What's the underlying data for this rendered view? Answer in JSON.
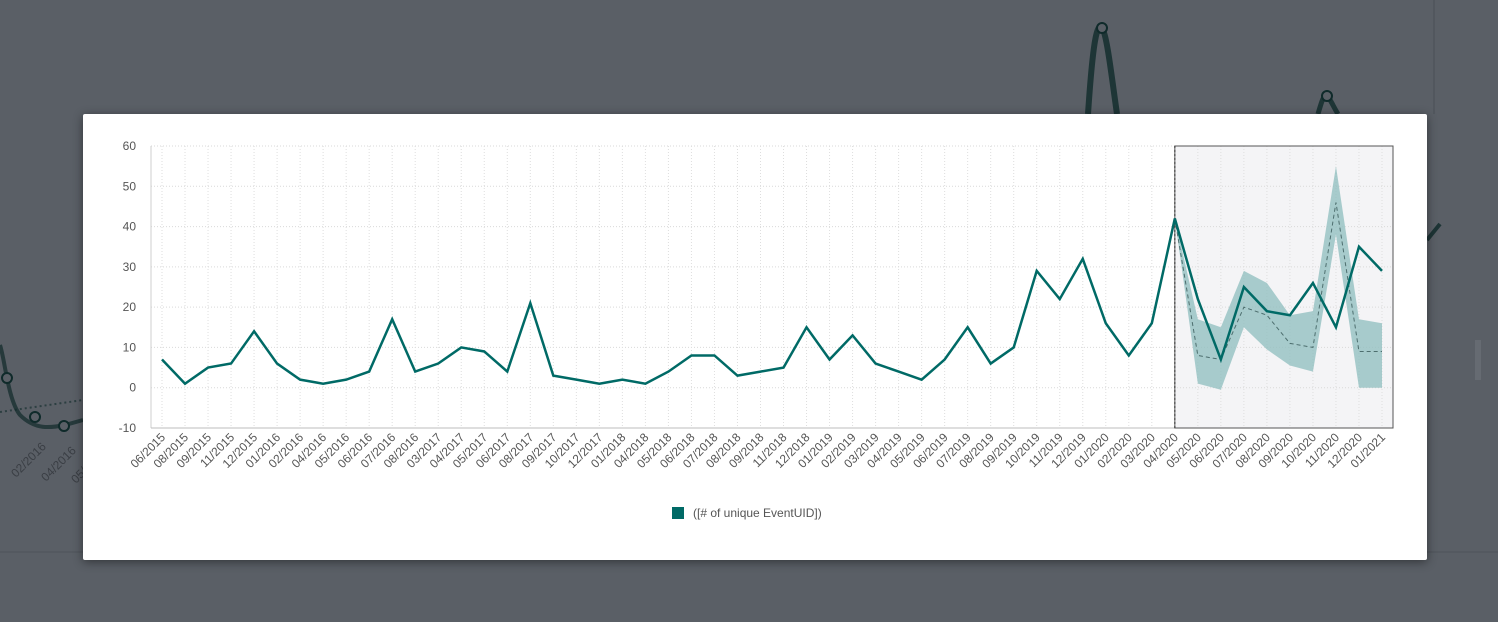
{
  "colors": {
    "series": "#006a66",
    "band": "#8dbdbd",
    "forecast_region": "#f4f4f6",
    "backdrop": "#5a5f66"
  },
  "backdrop": {
    "visible_tick_labels": [
      "02/2016",
      "04/2016",
      "05/2016"
    ]
  },
  "chart_data": {
    "type": "line",
    "x": [
      "06/2015",
      "08/2015",
      "09/2015",
      "11/2015",
      "12/2015",
      "01/2016",
      "02/2016",
      "04/2016",
      "05/2016",
      "06/2016",
      "07/2016",
      "08/2016",
      "03/2017",
      "04/2017",
      "05/2017",
      "06/2017",
      "08/2017",
      "09/2017",
      "10/2017",
      "12/2017",
      "01/2018",
      "04/2018",
      "05/2018",
      "06/2018",
      "07/2018",
      "08/2018",
      "09/2018",
      "11/2018",
      "12/2018",
      "01/2019",
      "02/2019",
      "03/2019",
      "04/2019",
      "05/2019",
      "06/2019",
      "07/2019",
      "08/2019",
      "09/2019",
      "10/2019",
      "11/2019",
      "12/2019",
      "01/2020",
      "02/2020",
      "03/2020",
      "04/2020",
      "05/2020",
      "06/2020",
      "07/2020",
      "08/2020",
      "09/2020",
      "10/2020",
      "11/2020",
      "12/2020",
      "01/2021"
    ],
    "series": [
      {
        "name": "([# of unique EventUID])",
        "values": [
          7,
          1,
          5,
          6,
          14,
          6,
          2,
          1,
          2,
          4,
          17,
          4,
          6,
          10,
          9,
          4,
          21,
          3,
          2,
          1,
          2,
          1,
          4,
          8,
          8,
          3,
          4,
          5,
          15,
          7,
          13,
          6,
          4,
          2,
          7,
          15,
          6,
          10,
          29,
          22,
          32,
          16,
          8,
          16,
          42,
          22,
          7,
          25,
          19,
          18,
          26,
          15,
          35,
          29
        ]
      }
    ],
    "forecast": {
      "start_index": 44,
      "values": [
        42,
        8,
        7,
        20,
        18,
        11,
        10,
        46,
        9,
        9
      ],
      "upper": [
        42,
        17,
        15,
        29,
        26,
        18,
        19,
        55,
        17,
        16
      ],
      "lower": [
        42,
        1,
        -0.5,
        15,
        9.5,
        5.5,
        4,
        38,
        0,
        0
      ]
    },
    "ylim": [
      -10,
      60
    ],
    "yticks": [
      -10,
      0,
      10,
      20,
      30,
      40,
      50,
      60
    ],
    "title": "",
    "xlabel": "",
    "ylabel": "",
    "grid": true,
    "legend_position": "bottom-center"
  }
}
